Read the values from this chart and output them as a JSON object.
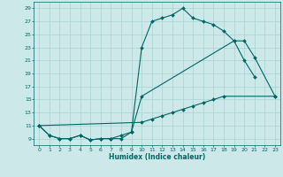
{
  "xlabel": "Humidex (Indice chaleur)",
  "background_color": "#cce8e8",
  "grid_color": "#aad0d0",
  "line_color": "#006666",
  "xlim": [
    -0.5,
    23.5
  ],
  "ylim": [
    8.0,
    30.0
  ],
  "yticks": [
    9,
    11,
    13,
    15,
    17,
    19,
    21,
    23,
    25,
    27,
    29
  ],
  "xticks": [
    0,
    1,
    2,
    3,
    4,
    5,
    6,
    7,
    8,
    9,
    10,
    11,
    12,
    13,
    14,
    15,
    16,
    17,
    18,
    19,
    20,
    21,
    22,
    23
  ],
  "series": [
    {
      "x": [
        0,
        1,
        2,
        3,
        4,
        5,
        6,
        7,
        8,
        9,
        10,
        11,
        12,
        13,
        14,
        15,
        16,
        17,
        18,
        19,
        20,
        21
      ],
      "y": [
        11,
        9.5,
        9,
        9,
        9.5,
        8.8,
        9,
        9,
        9,
        10,
        23,
        27,
        27.5,
        28,
        29,
        27.5,
        27,
        26.5,
        25.5,
        24,
        21,
        18.5
      ]
    },
    {
      "x": [
        0,
        1,
        2,
        3,
        4,
        5,
        6,
        7,
        8,
        9,
        10,
        19,
        20,
        21,
        23
      ],
      "y": [
        11,
        9.5,
        9,
        9,
        9.5,
        8.8,
        9,
        9,
        9.5,
        10,
        15.5,
        24,
        24,
        21.5,
        15.5
      ]
    },
    {
      "x": [
        0,
        10,
        11,
        12,
        13,
        14,
        15,
        16,
        17,
        18,
        23
      ],
      "y": [
        11,
        11.5,
        12,
        12.5,
        13,
        13.5,
        14,
        14.5,
        15,
        15.5,
        15.5
      ]
    }
  ]
}
